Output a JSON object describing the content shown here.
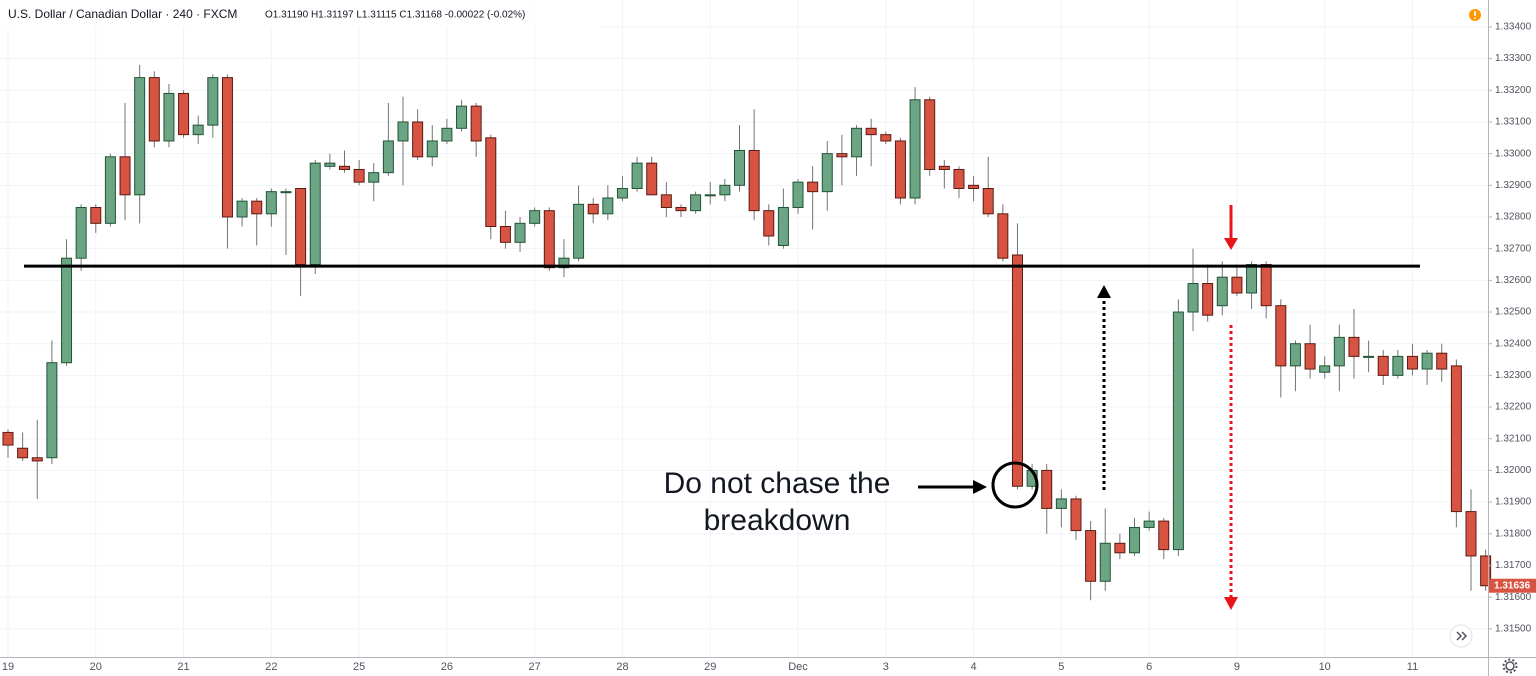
{
  "chart_data": {
    "type": "candlestick",
    "title": "U.S. Dollar / Canadian Dollar · 240 · FXCM",
    "legend_values": "O1.31190 H1.31197 L1.31115 C1.31168 -0.00022 (-0.02%)",
    "annotation_lines": [
      "Do not chase the",
      "breakdown"
    ],
    "categories": [
      "19",
      null,
      null,
      null,
      null,
      null,
      "20",
      null,
      null,
      null,
      null,
      null,
      "21",
      null,
      null,
      null,
      null,
      null,
      "22",
      null,
      null,
      null,
      null,
      null,
      "25",
      null,
      null,
      null,
      null,
      null,
      "26",
      null,
      null,
      null,
      null,
      null,
      "27",
      null,
      null,
      null,
      null,
      null,
      "28",
      null,
      null,
      null,
      null,
      null,
      "29",
      null,
      null,
      null,
      null,
      null,
      "Dec",
      null,
      null,
      null,
      null,
      null,
      "3",
      null,
      null,
      null,
      null,
      null,
      "4",
      null,
      null,
      null,
      null,
      null,
      "5",
      null,
      null,
      null,
      null,
      null,
      "6",
      null,
      null,
      null,
      null,
      null,
      "9",
      null,
      null,
      null,
      null,
      null,
      "10",
      null,
      null,
      null,
      null,
      null,
      "11",
      null,
      null,
      null,
      null,
      null
    ],
    "open": [
      1.3212,
      1.3207,
      1.3204,
      1.3204,
      1.3234,
      1.3267,
      1.3283,
      1.3278,
      1.3299,
      1.3287,
      1.3324,
      1.3304,
      1.3319,
      1.3306,
      1.3309,
      1.3324,
      1.328,
      1.3285,
      1.3281,
      1.3288,
      1.3289,
      1.3265,
      1.3296,
      1.3296,
      1.3295,
      1.3291,
      1.3294,
      1.3304,
      1.331,
      1.3299,
      1.3304,
      1.3308,
      1.3315,
      1.3305,
      1.3277,
      1.3272,
      1.3278,
      1.3282,
      1.3264,
      1.3267,
      1.3284,
      1.3281,
      1.3286,
      1.3289,
      1.3297,
      1.3287,
      1.3283,
      1.3282,
      1.3287,
      1.3287,
      1.329,
      1.3301,
      1.3282,
      1.3271,
      1.3283,
      1.3291,
      1.3288,
      1.33,
      1.3299,
      1.3308,
      1.3306,
      1.3304,
      1.3286,
      1.3317,
      1.3296,
      1.3295,
      1.329,
      1.3289,
      1.3281,
      1.3268,
      1.3195,
      1.32,
      1.3188,
      1.3191,
      1.3181,
      1.3165,
      1.3177,
      1.3174,
      1.3182,
      1.3184,
      1.3175,
      1.325,
      1.3259,
      1.3252,
      1.3261,
      1.3256,
      1.3265,
      1.3252,
      1.3233,
      1.324,
      1.3231,
      1.3233,
      1.3242,
      1.3236,
      1.3236,
      1.323,
      1.3236,
      1.3232,
      1.3237,
      1.3233,
      1.3187,
      1.3173
    ],
    "high": [
      1.3213,
      1.3212,
      1.3216,
      1.3241,
      1.3273,
      1.3284,
      1.3284,
      1.33,
      1.3316,
      1.3328,
      1.3326,
      1.3322,
      1.332,
      1.3312,
      1.3325,
      1.3325,
      1.3286,
      1.3286,
      1.3289,
      1.3289,
      1.3289,
      1.3298,
      1.33,
      1.3301,
      1.3298,
      1.3297,
      1.3316,
      1.3318,
      1.3314,
      1.3309,
      1.3311,
      1.3317,
      1.3316,
      1.3306,
      1.3282,
      1.328,
      1.3283,
      1.3283,
      1.3273,
      1.329,
      1.3286,
      1.329,
      1.3293,
      1.3299,
      1.3299,
      1.3291,
      1.3284,
      1.3288,
      1.3291,
      1.3292,
      1.3309,
      1.3314,
      1.3284,
      1.3289,
      1.3292,
      1.3296,
      1.3304,
      1.3306,
      1.3309,
      1.3311,
      1.3307,
      1.3305,
      1.3321,
      1.3318,
      1.3298,
      1.3296,
      1.3293,
      1.3299,
      1.3284,
      1.3278,
      1.3202,
      1.3202,
      1.3194,
      1.3192,
      1.3184,
      1.3188,
      1.318,
      1.3185,
      1.3187,
      1.3185,
      1.3254,
      1.327,
      1.3265,
      1.3266,
      1.3265,
      1.3266,
      1.3266,
      1.3254,
      1.3241,
      1.3246,
      1.3236,
      1.3246,
      1.3251,
      1.3241,
      1.3238,
      1.3238,
      1.324,
      1.3238,
      1.324,
      1.3235,
      1.3194,
      1.3175
    ],
    "low": [
      1.3204,
      1.3203,
      1.3191,
      1.3202,
      1.3233,
      1.3263,
      1.3275,
      1.3277,
      1.3279,
      1.3278,
      1.3302,
      1.3302,
      1.3305,
      1.3303,
      1.3305,
      1.327,
      1.3277,
      1.3271,
      1.3277,
      1.3268,
      1.3255,
      1.3262,
      1.3295,
      1.3294,
      1.329,
      1.3285,
      1.3293,
      1.329,
      1.3298,
      1.3296,
      1.3303,
      1.3307,
      1.3299,
      1.3273,
      1.327,
      1.3269,
      1.3277,
      1.3263,
      1.3261,
      1.3266,
      1.3278,
      1.3279,
      1.3285,
      1.3288,
      1.3287,
      1.328,
      1.328,
      1.3281,
      1.3284,
      1.3285,
      1.3288,
      1.3279,
      1.3271,
      1.327,
      1.3281,
      1.3276,
      1.3282,
      1.329,
      1.3293,
      1.3296,
      1.3303,
      1.3284,
      1.3284,
      1.3293,
      1.3289,
      1.3286,
      1.3285,
      1.328,
      1.3266,
      1.3194,
      1.3194,
      1.318,
      1.3182,
      1.3178,
      1.3159,
      1.3162,
      1.3172,
      1.3173,
      1.3181,
      1.3172,
      1.3173,
      1.3244,
      1.3247,
      1.3249,
      1.3255,
      1.3251,
      1.3248,
      1.3223,
      1.3225,
      1.3229,
      1.3229,
      1.3225,
      1.3229,
      1.3231,
      1.3227,
      1.3229,
      1.323,
      1.3227,
      1.3228,
      1.3182,
      1.3162,
      1.3162
    ],
    "close": [
      1.3208,
      1.3204,
      1.3203,
      1.3234,
      1.3267,
      1.3283,
      1.3278,
      1.3299,
      1.3287,
      1.3324,
      1.3304,
      1.3319,
      1.3306,
      1.3309,
      1.3324,
      1.328,
      1.3285,
      1.3281,
      1.3288,
      1.3288,
      1.3265,
      1.3297,
      1.3297,
      1.3295,
      1.3291,
      1.3294,
      1.3304,
      1.331,
      1.3299,
      1.3304,
      1.3308,
      1.3315,
      1.3304,
      1.3277,
      1.3272,
      1.3278,
      1.3282,
      1.3264,
      1.3267,
      1.3284,
      1.3281,
      1.3286,
      1.3289,
      1.3297,
      1.3287,
      1.3283,
      1.3282,
      1.3287,
      1.3287,
      1.329,
      1.3301,
      1.3282,
      1.3274,
      1.3283,
      1.3291,
      1.3288,
      1.33,
      1.3299,
      1.3308,
      1.3306,
      1.3304,
      1.3286,
      1.3317,
      1.3295,
      1.3295,
      1.3289,
      1.3289,
      1.3281,
      1.3267,
      1.3195,
      1.32,
      1.3188,
      1.3191,
      1.3181,
      1.3165,
      1.3177,
      1.3174,
      1.3182,
      1.3184,
      1.3175,
      1.325,
      1.3259,
      1.3249,
      1.3261,
      1.3256,
      1.3265,
      1.3252,
      1.3233,
      1.324,
      1.3232,
      1.3233,
      1.3242,
      1.3236,
      1.3236,
      1.323,
      1.3236,
      1.3232,
      1.3237,
      1.3232,
      1.3187,
      1.3173,
      1.31636
    ],
    "up_color": "#6ba583",
    "down_color": "#d75442",
    "up_border": "#225437",
    "down_border": "#5b1a13",
    "wick_color": "#737375",
    "levels": [
      1.32645
    ],
    "last_price": 1.31636,
    "ylim": [
      1.31411,
      1.33485
    ],
    "yticks": [
      {
        "value": 1.315,
        "label": "1.31500"
      },
      {
        "value": 1.316,
        "label": "1.31600"
      },
      {
        "value": 1.317,
        "label": "1.31700"
      },
      {
        "value": 1.318,
        "label": "1.31800"
      },
      {
        "value": 1.319,
        "label": "1.31900"
      },
      {
        "value": 1.32,
        "label": "1.32000"
      },
      {
        "value": 1.321,
        "label": "1.32100"
      },
      {
        "value": 1.322,
        "label": "1.32200"
      },
      {
        "value": 1.323,
        "label": "1.32300"
      },
      {
        "value": 1.324,
        "label": "1.32400"
      },
      {
        "value": 1.325,
        "label": "1.32500"
      },
      {
        "value": 1.326,
        "label": "1.32600"
      },
      {
        "value": 1.327,
        "label": "1.32700"
      },
      {
        "value": 1.328,
        "label": "1.32800"
      },
      {
        "value": 1.329,
        "label": "1.32900"
      },
      {
        "value": 1.33,
        "label": "1.33000"
      },
      {
        "value": 1.331,
        "label": "1.33100"
      },
      {
        "value": 1.332,
        "label": "1.33200"
      },
      {
        "value": 1.333,
        "label": "1.33300"
      },
      {
        "value": 1.334,
        "label": "1.33400"
      }
    ],
    "grid": true
  }
}
